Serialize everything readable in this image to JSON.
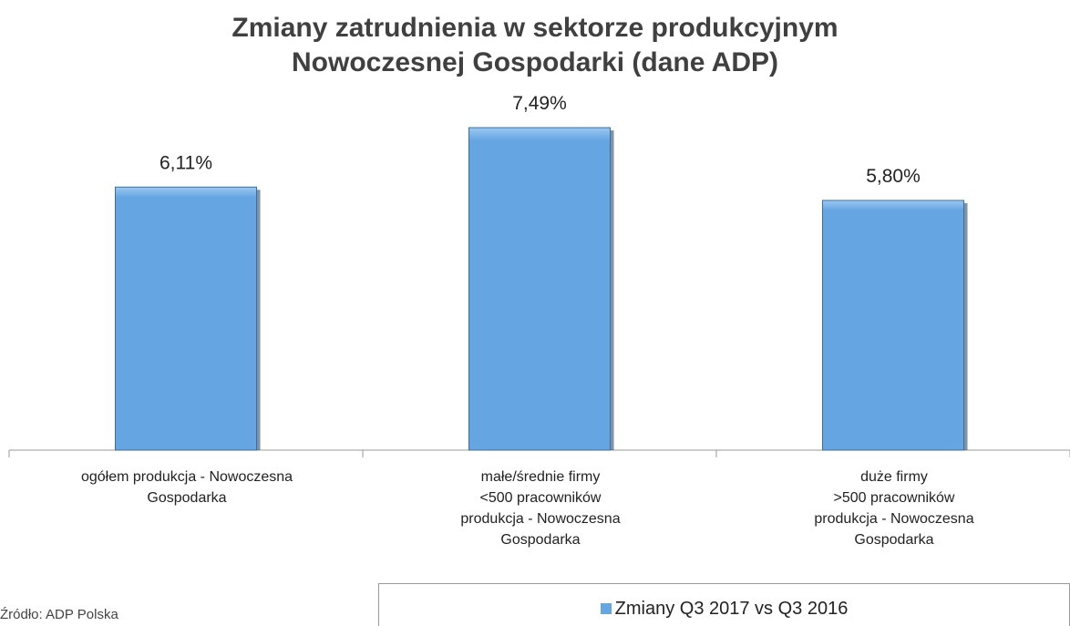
{
  "chart_data": {
    "type": "bar",
    "title": "Zmiany zatrudnienia w sektorze produkcyjnym\nNowoczesnej Gospodarki (dane ADP)",
    "categories": [
      "ogółem produkcja - Nowoczesna\nGospodarka",
      "małe/średnie firmy\n<500 pracowników\nprodukcja - Nowoczesna\nGospodarka",
      "duże firmy\n>500 pracowników\nprodukcja - Nowoczesna\nGospodarka"
    ],
    "series": [
      {
        "name": "Zmiany Q3 2017 vs Q3 2016",
        "color": "#65a5e2",
        "values": [
          6.11,
          7.49,
          5.8
        ],
        "value_labels": [
          "6,11%",
          "7,49%",
          "5,80%"
        ]
      }
    ],
    "ylim": [
      0,
      8
    ],
    "source": "Źródło: ADP Polska"
  }
}
